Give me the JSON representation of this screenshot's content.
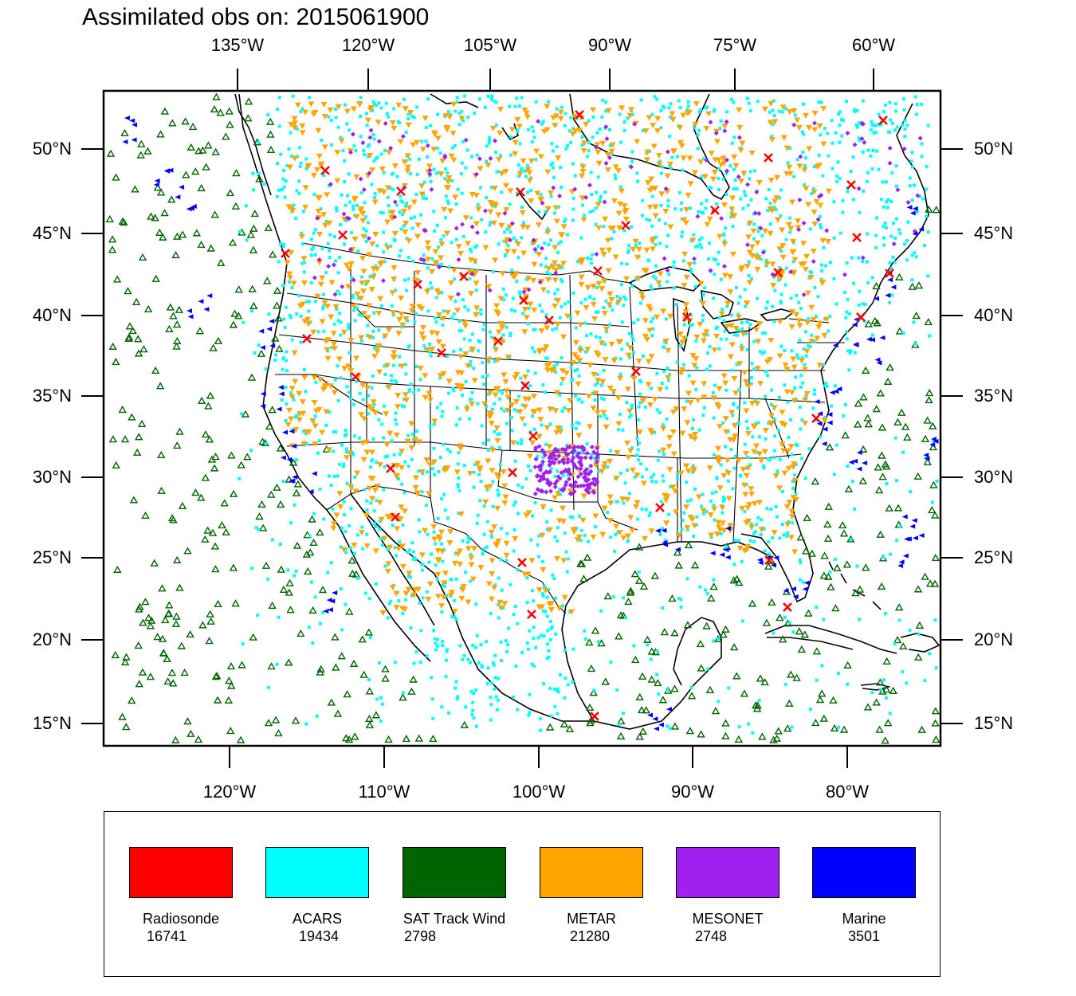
{
  "title": "Assimilated obs on: 2015061900",
  "map": {
    "top_lon_labels": [
      "135°W",
      "120°W",
      "105°W",
      "90°W",
      "75°W",
      "60°W"
    ],
    "bottom_lon_labels": [
      "120°W",
      "110°W",
      "100°W",
      "90°W",
      "80°W"
    ],
    "lat_labels": [
      "50°N",
      "45°N",
      "40°N",
      "35°N",
      "30°N",
      "25°N",
      "20°N",
      "15°N"
    ],
    "extent": {
      "lon_min": -128,
      "lon_max": -74,
      "lat_min": 14,
      "lat_max": 53
    }
  },
  "legend": [
    {
      "name": "Radiosonde",
      "count": "16741",
      "color": "#ff0000",
      "symbol": "x-cross"
    },
    {
      "name": "ACARS",
      "count": "19434",
      "color": "#00ffff",
      "symbol": "square"
    },
    {
      "name": "SAT Track Wind",
      "count": "2798",
      "color": "#006400",
      "symbol": "triangle-up"
    },
    {
      "name": "METAR",
      "count": "21280",
      "color": "#ffa500",
      "symbol": "triangle-down"
    },
    {
      "name": "MESONET",
      "count": "2748",
      "color": "#a020f0",
      "symbol": "diamond"
    },
    {
      "name": "Marine",
      "count": "3501",
      "color": "#0000ff",
      "symbol": "triangle-left"
    }
  ]
}
